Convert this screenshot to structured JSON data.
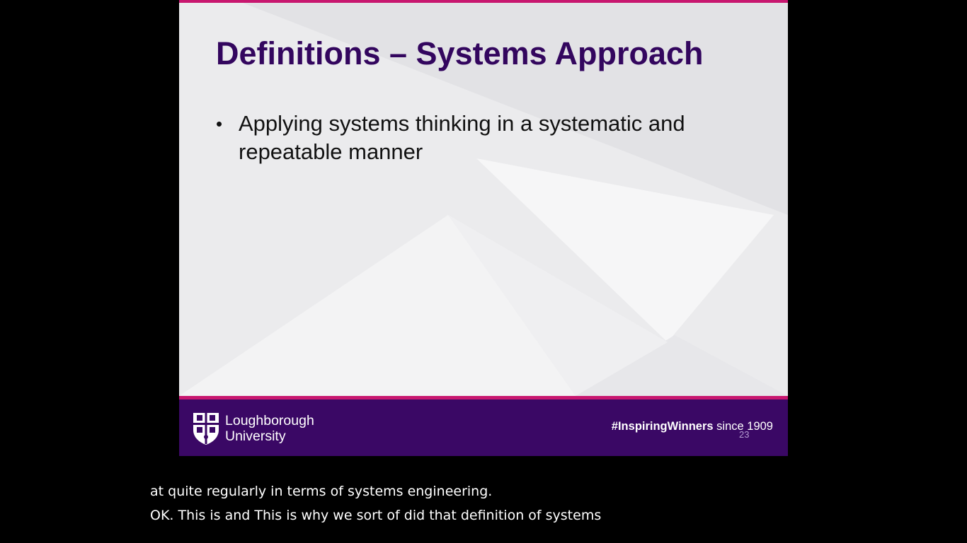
{
  "slide": {
    "title": "Definitions – Systems Approach",
    "bullets": [
      "Applying systems thinking in a systematic and repeatable manner"
    ],
    "bullet_symbol": "•",
    "slide_number": "23",
    "colors": {
      "title": "#33065e",
      "accent": "#c8176f",
      "footer": "#3a0865"
    }
  },
  "footer": {
    "logo_line1": "Loughborough",
    "logo_line2": "University",
    "logo_icon": "university-crest-icon",
    "tagline_bold": "#InspiringWinners",
    "tagline_rest": " since 1909"
  },
  "captions": {
    "line1": "at quite regularly in terms of systems engineering.",
    "line2": "OK. This is and This is why we sort of did that definition of systems"
  }
}
